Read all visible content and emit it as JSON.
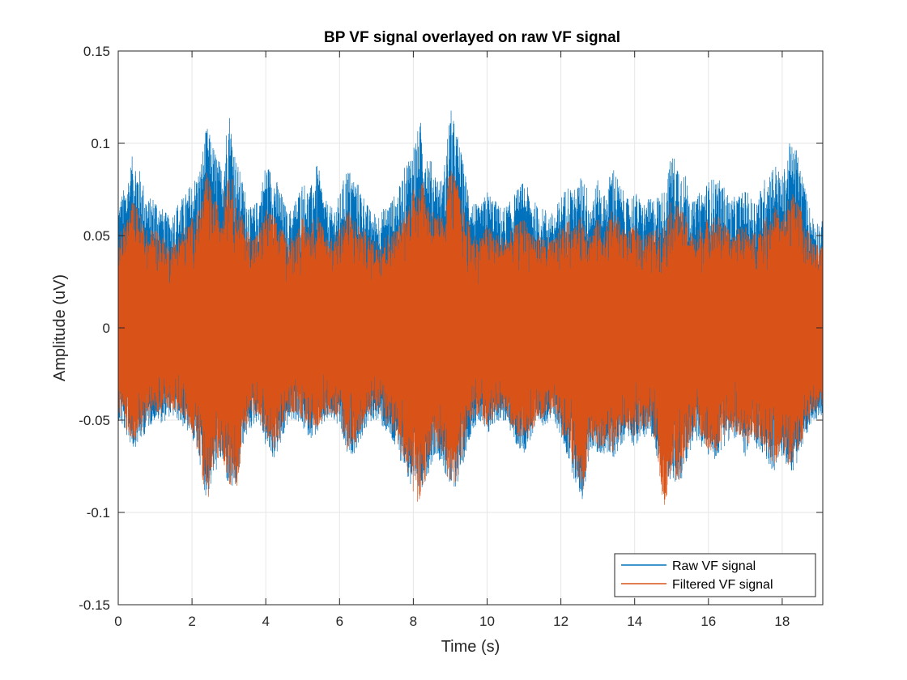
{
  "chart_data": {
    "type": "line",
    "title": "BP VF signal overlayed on raw VF signal",
    "xlabel": "Time (s)",
    "ylabel": "Amplitude (uV)",
    "xlim": [
      0,
      19.1
    ],
    "ylim": [
      -0.15,
      0.15
    ],
    "xticks": [
      0,
      2,
      4,
      6,
      8,
      10,
      12,
      14,
      16,
      18
    ],
    "yticks": [
      -0.15,
      -0.1,
      -0.05,
      0,
      0.05,
      0.1,
      0.15
    ],
    "xtick_labels": [
      "0",
      "2",
      "4",
      "6",
      "8",
      "10",
      "12",
      "14",
      "16",
      "18"
    ],
    "ytick_labels": [
      "-0.15",
      "-0.1",
      "-0.05",
      "0",
      "0.05",
      "0.1",
      "0.15"
    ],
    "grid": true,
    "legend_position": "bottom-right",
    "series": [
      {
        "name": "Raw VF signal",
        "color": "#0072BD",
        "envelope_x": [
          0,
          0.2,
          0.4,
          0.6,
          0.8,
          1.0,
          1.2,
          1.4,
          1.6,
          1.8,
          2.0,
          2.2,
          2.4,
          2.6,
          2.8,
          3.0,
          3.2,
          3.4,
          3.6,
          3.8,
          4.0,
          4.2,
          4.4,
          4.6,
          4.8,
          5.0,
          5.2,
          5.4,
          5.6,
          5.8,
          6.0,
          6.2,
          6.4,
          6.6,
          6.8,
          7.0,
          7.2,
          7.4,
          7.6,
          7.8,
          8.0,
          8.2,
          8.4,
          8.6,
          8.8,
          9.0,
          9.2,
          9.4,
          9.6,
          9.8,
          10.0,
          10.2,
          10.4,
          10.6,
          10.8,
          11.0,
          11.2,
          11.4,
          11.6,
          11.8,
          12.0,
          12.2,
          12.4,
          12.6,
          12.8,
          13.0,
          13.2,
          13.4,
          13.6,
          13.8,
          14.0,
          14.2,
          14.4,
          14.6,
          14.8,
          15.0,
          15.2,
          15.4,
          15.6,
          15.8,
          16.0,
          16.2,
          16.4,
          16.6,
          16.8,
          17.0,
          17.2,
          17.4,
          17.6,
          17.8,
          18.0,
          18.2,
          18.4,
          18.6,
          18.8,
          19.0
        ],
        "envelope_max": [
          0.068,
          0.078,
          0.095,
          0.085,
          0.07,
          0.072,
          0.065,
          0.06,
          0.068,
          0.072,
          0.08,
          0.086,
          0.11,
          0.098,
          0.088,
          0.12,
          0.092,
          0.078,
          0.065,
          0.07,
          0.09,
          0.085,
          0.075,
          0.062,
          0.07,
          0.08,
          0.075,
          0.09,
          0.07,
          0.065,
          0.072,
          0.088,
          0.082,
          0.075,
          0.065,
          0.062,
          0.065,
          0.07,
          0.075,
          0.09,
          0.1,
          0.112,
          0.095,
          0.085,
          0.08,
          0.12,
          0.105,
          0.085,
          0.07,
          0.065,
          0.075,
          0.07,
          0.065,
          0.068,
          0.075,
          0.08,
          0.072,
          0.065,
          0.065,
          0.062,
          0.072,
          0.078,
          0.075,
          0.085,
          0.07,
          0.08,
          0.072,
          0.09,
          0.078,
          0.07,
          0.075,
          0.068,
          0.07,
          0.072,
          0.075,
          0.095,
          0.09,
          0.082,
          0.068,
          0.075,
          0.08,
          0.082,
          0.078,
          0.07,
          0.072,
          0.075,
          0.07,
          0.075,
          0.085,
          0.09,
          0.082,
          0.1,
          0.098,
          0.078,
          0.062,
          0.058
        ],
        "envelope_min": [
          -0.05,
          -0.058,
          -0.066,
          -0.062,
          -0.055,
          -0.05,
          -0.052,
          -0.048,
          -0.05,
          -0.055,
          -0.06,
          -0.072,
          -0.095,
          -0.08,
          -0.072,
          -0.088,
          -0.09,
          -0.062,
          -0.055,
          -0.05,
          -0.065,
          -0.072,
          -0.065,
          -0.052,
          -0.05,
          -0.055,
          -0.06,
          -0.058,
          -0.052,
          -0.05,
          -0.055,
          -0.07,
          -0.068,
          -0.06,
          -0.052,
          -0.05,
          -0.055,
          -0.062,
          -0.07,
          -0.078,
          -0.095,
          -0.088,
          -0.08,
          -0.068,
          -0.075,
          -0.09,
          -0.085,
          -0.07,
          -0.055,
          -0.052,
          -0.06,
          -0.052,
          -0.05,
          -0.055,
          -0.065,
          -0.068,
          -0.06,
          -0.055,
          -0.052,
          -0.05,
          -0.06,
          -0.072,
          -0.085,
          -0.095,
          -0.065,
          -0.07,
          -0.068,
          -0.072,
          -0.065,
          -0.058,
          -0.065,
          -0.06,
          -0.058,
          -0.07,
          -0.078,
          -0.085,
          -0.088,
          -0.075,
          -0.06,
          -0.065,
          -0.07,
          -0.072,
          -0.065,
          -0.06,
          -0.062,
          -0.07,
          -0.065,
          -0.068,
          -0.075,
          -0.078,
          -0.07,
          -0.08,
          -0.075,
          -0.062,
          -0.052,
          -0.048
        ]
      },
      {
        "name": "Filtered VF signal",
        "color": "#D95319",
        "envelope_x": [
          0,
          0.2,
          0.4,
          0.6,
          0.8,
          1.0,
          1.2,
          1.4,
          1.6,
          1.8,
          2.0,
          2.2,
          2.4,
          2.6,
          2.8,
          3.0,
          3.2,
          3.4,
          3.6,
          3.8,
          4.0,
          4.2,
          4.4,
          4.6,
          4.8,
          5.0,
          5.2,
          5.4,
          5.6,
          5.8,
          6.0,
          6.2,
          6.4,
          6.6,
          6.8,
          7.0,
          7.2,
          7.4,
          7.6,
          7.8,
          8.0,
          8.2,
          8.4,
          8.6,
          8.8,
          9.0,
          9.2,
          9.4,
          9.6,
          9.8,
          10.0,
          10.2,
          10.4,
          10.6,
          10.8,
          11.0,
          11.2,
          11.4,
          11.6,
          11.8,
          12.0,
          12.2,
          12.4,
          12.6,
          12.8,
          13.0,
          13.2,
          13.4,
          13.6,
          13.8,
          14.0,
          14.2,
          14.4,
          14.6,
          14.8,
          15.0,
          15.2,
          15.4,
          15.6,
          15.8,
          16.0,
          16.2,
          16.4,
          16.6,
          16.8,
          17.0,
          17.2,
          17.4,
          17.6,
          17.8,
          18.0,
          18.2,
          18.4,
          18.6,
          18.8,
          19.0
        ],
        "envelope_max": [
          0.05,
          0.058,
          0.07,
          0.062,
          0.052,
          0.055,
          0.05,
          0.045,
          0.05,
          0.055,
          0.06,
          0.065,
          0.085,
          0.07,
          0.065,
          0.09,
          0.07,
          0.058,
          0.05,
          0.052,
          0.065,
          0.062,
          0.055,
          0.048,
          0.052,
          0.06,
          0.055,
          0.065,
          0.052,
          0.05,
          0.055,
          0.065,
          0.06,
          0.055,
          0.05,
          0.048,
          0.05,
          0.052,
          0.055,
          0.065,
          0.075,
          0.085,
          0.07,
          0.062,
          0.06,
          0.09,
          0.078,
          0.062,
          0.052,
          0.05,
          0.056,
          0.052,
          0.05,
          0.052,
          0.056,
          0.06,
          0.054,
          0.05,
          0.05,
          0.048,
          0.055,
          0.058,
          0.056,
          0.062,
          0.052,
          0.06,
          0.054,
          0.066,
          0.058,
          0.052,
          0.056,
          0.052,
          0.052,
          0.054,
          0.056,
          0.07,
          0.066,
          0.06,
          0.05,
          0.056,
          0.06,
          0.062,
          0.058,
          0.052,
          0.054,
          0.056,
          0.052,
          0.056,
          0.062,
          0.066,
          0.06,
          0.074,
          0.072,
          0.058,
          0.048,
          0.044
        ],
        "envelope_min": [
          -0.045,
          -0.055,
          -0.062,
          -0.058,
          -0.05,
          -0.045,
          -0.048,
          -0.044,
          -0.046,
          -0.05,
          -0.058,
          -0.07,
          -0.097,
          -0.075,
          -0.068,
          -0.085,
          -0.09,
          -0.058,
          -0.05,
          -0.046,
          -0.06,
          -0.068,
          -0.06,
          -0.048,
          -0.046,
          -0.05,
          -0.056,
          -0.054,
          -0.048,
          -0.046,
          -0.05,
          -0.066,
          -0.064,
          -0.056,
          -0.048,
          -0.046,
          -0.05,
          -0.058,
          -0.066,
          -0.074,
          -0.092,
          -0.097,
          -0.076,
          -0.064,
          -0.07,
          -0.088,
          -0.082,
          -0.066,
          -0.05,
          -0.048,
          -0.056,
          -0.048,
          -0.046,
          -0.05,
          -0.06,
          -0.064,
          -0.056,
          -0.05,
          -0.048,
          -0.046,
          -0.056,
          -0.068,
          -0.08,
          -0.09,
          -0.06,
          -0.066,
          -0.064,
          -0.068,
          -0.06,
          -0.054,
          -0.06,
          -0.056,
          -0.054,
          -0.066,
          -0.102,
          -0.08,
          -0.084,
          -0.07,
          -0.056,
          -0.06,
          -0.066,
          -0.068,
          -0.06,
          -0.056,
          -0.058,
          -0.066,
          -0.06,
          -0.064,
          -0.07,
          -0.074,
          -0.066,
          -0.076,
          -0.07,
          -0.058,
          -0.048,
          -0.044
        ]
      }
    ]
  },
  "colors": {
    "axis": "#262626",
    "grid": "#e6e6e6",
    "background": "#ffffff"
  }
}
